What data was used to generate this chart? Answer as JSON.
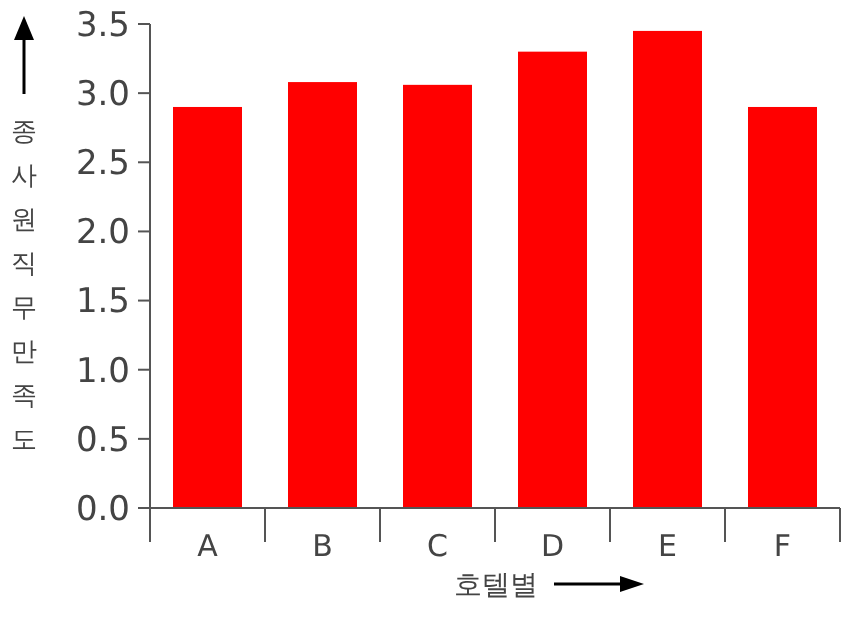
{
  "chart_data": {
    "type": "bar",
    "xlabel": "호텔별",
    "ylabel": "종사원직무만족도",
    "categories": [
      "A",
      "B",
      "C",
      "D",
      "E",
      "F"
    ],
    "values": [
      2.9,
      3.08,
      3.06,
      3.3,
      3.45,
      2.9
    ],
    "color": "#ff0000",
    "ylim": [
      0,
      3.5
    ],
    "yticks": [
      {
        "value": 0,
        "label": "0.0"
      },
      {
        "value": 0.5,
        "label": "0.5"
      },
      {
        "value": 1,
        "label": "1.0"
      },
      {
        "value": 1.5,
        "label": "1.5"
      },
      {
        "value": 2,
        "label": "2.0"
      },
      {
        "value": 2.5,
        "label": "2.5"
      },
      {
        "value": 3,
        "label": "3.0"
      },
      {
        "value": 3.5,
        "label": "3.5"
      }
    ],
    "grid": false
  }
}
